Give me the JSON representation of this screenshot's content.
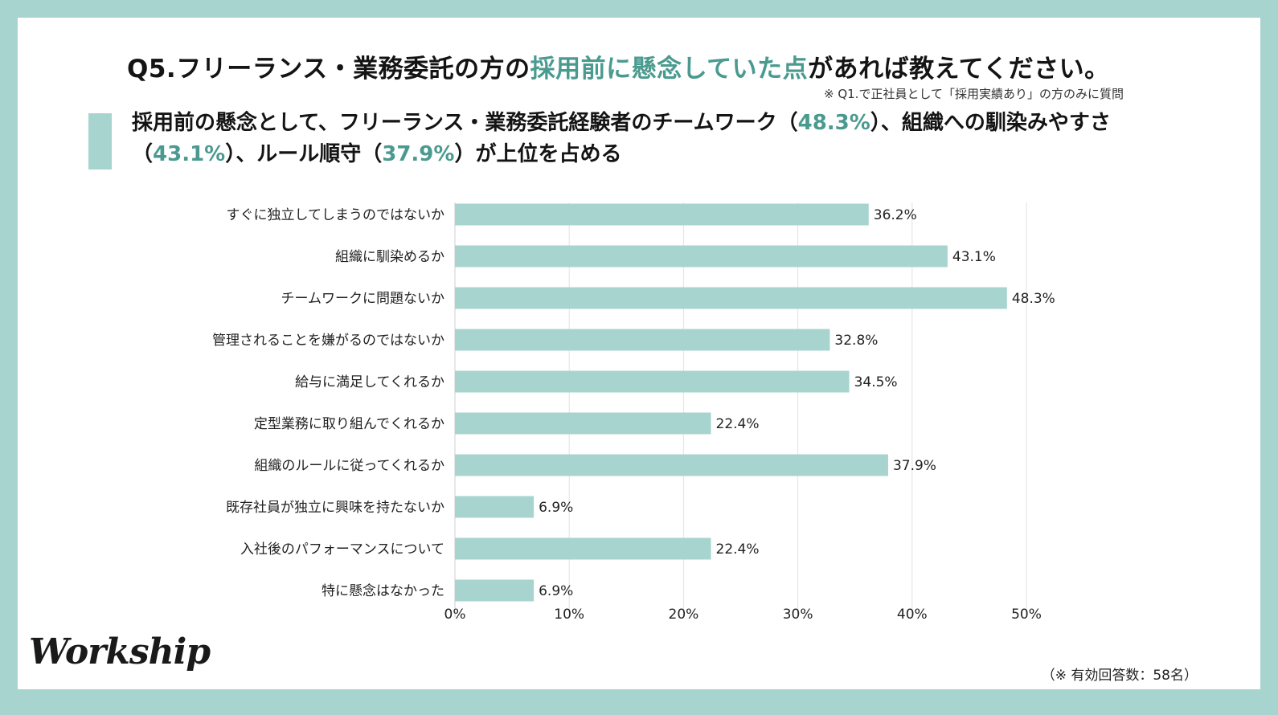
{
  "header": {
    "title_prefix": "Q5.フリーランス・業務委託の方の",
    "title_highlight": "採用前に懸念していた点",
    "title_suffix": "があれば教えてください。",
    "note": "※ Q1.で正社員として「採用実績あり」の方のみに質問"
  },
  "summary": {
    "part1": "採用前の懸念として、フリーランス・業務委託経験者のチームワーク（",
    "value1": "48.3%",
    "part2": "）、組織への馴染みやすさ（",
    "value2": "43.1%",
    "part3": "）、ルール順守（",
    "value3": "37.9%",
    "part4": "）が上位を占める"
  },
  "colors": {
    "frame": "#a8d4cf",
    "bar": "#a8d4cf",
    "highlight": "#4a9a8f",
    "grid": "#e2e2e2"
  },
  "chart_data": {
    "type": "bar",
    "orientation": "horizontal",
    "title": "Q5.フリーランス・業務委託の方の採用前に懸念していた点があれば教えてください。",
    "categories": [
      "すぐに独立してしまうのではないか",
      "組織に馴染めるか",
      "チームワークに問題ないか",
      "管理されることを嫌がるのではないか",
      "給与に満足してくれるか",
      "定型業務に取り組んでくれるか",
      "組織のルールに従ってくれるか",
      "既存社員が独立に興味を持たないか",
      "入社後のパフォーマンスについて",
      "特に懸念はなかった"
    ],
    "values": [
      36.2,
      43.1,
      48.3,
      32.8,
      34.5,
      22.4,
      37.9,
      6.9,
      22.4,
      6.9
    ],
    "value_labels": [
      "36.2%",
      "43.1%",
      "48.3%",
      "32.8%",
      "34.5%",
      "22.4%",
      "37.9%",
      "6.9%",
      "22.4%",
      "6.9%"
    ],
    "xlabel": "",
    "ylabel": "",
    "xlim": [
      0,
      50
    ],
    "xticks": [
      0,
      10,
      20,
      30,
      40,
      50
    ],
    "xtick_labels": [
      "0%",
      "10%",
      "20%",
      "30%",
      "40%",
      "50%"
    ],
    "grid": true,
    "legend": "none"
  },
  "footer": {
    "logo": "Workship",
    "respondents": "（※ 有効回答数：58名）"
  }
}
